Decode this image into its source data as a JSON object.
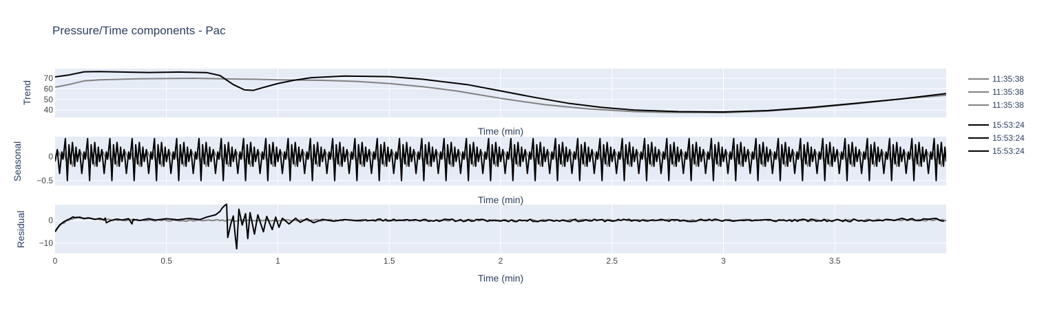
{
  "chart_data": {
    "type": "line",
    "title": "Pressure/Time components - Pac",
    "x_label": "Time (min)",
    "x_range": [
      0,
      4
    ],
    "x_ticks": [
      0,
      0.5,
      1,
      1.5,
      2,
      2.5,
      3,
      3.5
    ],
    "x_tick_labels": [
      "0",
      "0.5",
      "1",
      "1.5",
      "2",
      "2.5",
      "3",
      "3.5"
    ],
    "grid": true,
    "legend_position": "right",
    "colors": {
      "gray": "#808080",
      "black": "#000000",
      "plot_bg": "#e5ecf6",
      "grid": "#ffffff"
    },
    "legend": [
      {
        "label": "11:35:38",
        "color": "#808080"
      },
      {
        "label": "11:35:38",
        "color": "#808080"
      },
      {
        "label": "11:35:38",
        "color": "#808080"
      },
      {
        "label": "15:53:24",
        "color": "#000000"
      },
      {
        "label": "15:53:24",
        "color": "#000000"
      },
      {
        "label": "15:53:24",
        "color": "#000000"
      }
    ],
    "panels": [
      {
        "name": "trend",
        "ylabel": "Trend",
        "y_range": [
          33,
          79
        ],
        "y_ticks": [
          40,
          50,
          60,
          70
        ],
        "y_tick_labels": [
          "40",
          "50",
          "60",
          "70"
        ],
        "series": [
          {
            "legend": "11:35:38",
            "color": "#808080",
            "kind": "points",
            "points": [
              [
                0,
                61.5
              ],
              [
                0.06,
                64
              ],
              [
                0.13,
                67.5
              ],
              [
                0.2,
                68.5
              ],
              [
                0.3,
                69
              ],
              [
                0.37,
                69.5
              ],
              [
                0.5,
                69.7
              ],
              [
                0.62,
                69.9
              ],
              [
                0.75,
                69.5
              ],
              [
                0.9,
                69
              ],
              [
                1.0,
                68.5
              ],
              [
                1.2,
                68
              ],
              [
                1.35,
                67
              ],
              [
                1.5,
                65
              ],
              [
                1.65,
                62
              ],
              [
                1.8,
                58
              ],
              [
                2.0,
                51
              ],
              [
                2.2,
                45
              ],
              [
                2.4,
                41
              ],
              [
                2.6,
                38.5
              ],
              [
                2.75,
                37.7
              ],
              [
                3.0,
                37.5
              ],
              [
                3.2,
                39
              ],
              [
                3.4,
                42
              ],
              [
                3.6,
                46
              ],
              [
                3.8,
                50.5
              ],
              [
                4.0,
                54
              ]
            ]
          },
          {
            "legend": "15:53:24",
            "color": "#000000",
            "kind": "points",
            "points": [
              [
                0,
                71.2
              ],
              [
                0.06,
                73
              ],
              [
                0.13,
                76
              ],
              [
                0.2,
                76.3
              ],
              [
                0.3,
                75.8
              ],
              [
                0.42,
                75.4
              ],
              [
                0.55,
                75.8
              ],
              [
                0.68,
                75.3
              ],
              [
                0.74,
                72.5
              ],
              [
                0.8,
                64
              ],
              [
                0.85,
                59
              ],
              [
                0.89,
                58.5
              ],
              [
                0.93,
                61
              ],
              [
                1.0,
                65
              ],
              [
                1.07,
                68
              ],
              [
                1.15,
                70.5
              ],
              [
                1.3,
                72
              ],
              [
                1.5,
                71.5
              ],
              [
                1.65,
                69
              ],
              [
                1.85,
                64
              ],
              [
                2.0,
                58
              ],
              [
                2.15,
                52
              ],
              [
                2.3,
                46.5
              ],
              [
                2.45,
                42.5
              ],
              [
                2.6,
                40
              ],
              [
                2.8,
                38.5
              ],
              [
                3.0,
                38.2
              ],
              [
                3.2,
                39.5
              ],
              [
                3.4,
                42.5
              ],
              [
                3.6,
                46.5
              ],
              [
                3.8,
                50.5
              ],
              [
                4.0,
                55.5
              ]
            ]
          }
        ]
      },
      {
        "name": "seasonal",
        "ylabel": "Seasonal",
        "y_range": [
          -0.6,
          0.42
        ],
        "y_ticks": [
          -0.5,
          0
        ],
        "y_tick_labels": [
          "−0.5",
          "0"
        ],
        "series": [
          {
            "legend": "11:35:38",
            "color": "#808080",
            "kind": "periodic",
            "period": 0.1,
            "x_start": 0,
            "x_end": 4,
            "phase": [
              0,
              0.15,
              0.3,
              0.4,
              0.52,
              0.66,
              0.78,
              0.88,
              1
            ],
            "values": [
              0.02,
              0.1,
              -0.05,
              0.1,
              -0.12,
              0.08,
              -0.2,
              0.05,
              0.02
            ]
          },
          {
            "legend": "15:53:24",
            "color": "#000000",
            "kind": "periodic",
            "period": 0.1,
            "x_start": 0,
            "x_end": 4,
            "phase": [
              0,
              0.1,
              0.2,
              0.3,
              0.36,
              0.46,
              0.55,
              0.62,
              0.7,
              0.78,
              0.88,
              0.94,
              1
            ],
            "values": [
              -0.1,
              0.15,
              -0.35,
              0.1,
              -0.05,
              0.38,
              -0.5,
              0.25,
              -0.15,
              0.3,
              -0.2,
              0.2,
              -0.1
            ]
          }
        ]
      },
      {
        "name": "residual",
        "ylabel": "Residual",
        "y_range": [
          -14.5,
          7
        ],
        "y_ticks": [
          -10,
          0
        ],
        "y_tick_labels": [
          "−10",
          "0"
        ],
        "series": [
          {
            "legend": "11:35:38",
            "color": "#808080",
            "kind": "noise",
            "base": [
              [
                0,
                -4.5
              ],
              [
                0.03,
                -1.5
              ],
              [
                0.07,
                0.8
              ],
              [
                0.1,
                1.2
              ],
              [
                0.2,
                0.4
              ],
              [
                0.5,
                0
              ],
              [
                4.0,
                0.2
              ]
            ],
            "amplitude": 0.35,
            "step": 0.01,
            "seed": 7
          },
          {
            "legend": "15:53:24",
            "color": "#000000",
            "kind": "points",
            "points": [
              [
                0,
                -5
              ],
              [
                0.02,
                -2
              ],
              [
                0.04,
                -0.5
              ],
              [
                0.06,
                0.5
              ],
              [
                0.07,
                0.9
              ],
              [
                0.08,
                1.6
              ],
              [
                0.09,
                1.2
              ],
              [
                0.11,
                1.5
              ],
              [
                0.13,
                0.8
              ],
              [
                0.15,
                1.2
              ],
              [
                0.18,
                0.5
              ],
              [
                0.2,
                0.9
              ],
              [
                0.22,
                0.3
              ],
              [
                0.225,
                1.1
              ],
              [
                0.23,
                -1
              ],
              [
                0.25,
                0
              ],
              [
                0.28,
                0.6
              ],
              [
                0.3,
                0.2
              ],
              [
                0.33,
                0.8
              ],
              [
                0.345,
                -1.5
              ],
              [
                0.35,
                0.5
              ],
              [
                0.38,
                0
              ],
              [
                0.42,
                0.8
              ],
              [
                0.45,
                0.2
              ],
              [
                0.5,
                0.8
              ],
              [
                0.55,
                0.3
              ],
              [
                0.6,
                0.9
              ],
              [
                0.65,
                0.4
              ],
              [
                0.68,
                1.5
              ],
              [
                0.72,
                2.5
              ],
              [
                0.74,
                4
              ],
              [
                0.75,
                5.5
              ],
              [
                0.76,
                6.5
              ],
              [
                0.77,
                7.2
              ],
              [
                0.775,
                -7.5
              ],
              [
                0.79,
                -1
              ],
              [
                0.8,
                2
              ],
              [
                0.81,
                -8
              ],
              [
                0.815,
                -12.5
              ],
              [
                0.825,
                5
              ],
              [
                0.84,
                -2
              ],
              [
                0.855,
                3
              ],
              [
                0.865,
                -8
              ],
              [
                0.875,
                3.5
              ],
              [
                0.895,
                -6
              ],
              [
                0.91,
                2.5
              ],
              [
                0.935,
                -5
              ],
              [
                0.95,
                1.8
              ],
              [
                0.975,
                -4
              ],
              [
                0.99,
                1.5
              ],
              [
                1.005,
                -3
              ],
              [
                1.02,
                1
              ],
              [
                1.05,
                -1.5
              ],
              [
                1.08,
                1
              ],
              [
                1.1,
                -0.8
              ],
              [
                1.13,
                0.8
              ],
              [
                1.16,
                -1
              ],
              [
                1.2,
                0.5
              ],
              [
                1.25,
                -0.3
              ],
              [
                1.3,
                0.4
              ],
              [
                1.35,
                0
              ],
              [
                1.4,
                0.3
              ]
            ]
          },
          {
            "legend": "15:53:24",
            "color": "#000000",
            "kind": "noise",
            "base": [
              [
                1.4,
                0.3
              ],
              [
                2.0,
                0
              ],
              [
                3.0,
                0.1
              ],
              [
                3.5,
                0
              ],
              [
                3.95,
                0.6
              ],
              [
                4.0,
                -0.6
              ]
            ],
            "amplitude": 0.55,
            "step": 0.012,
            "seed": 11
          }
        ]
      }
    ]
  }
}
